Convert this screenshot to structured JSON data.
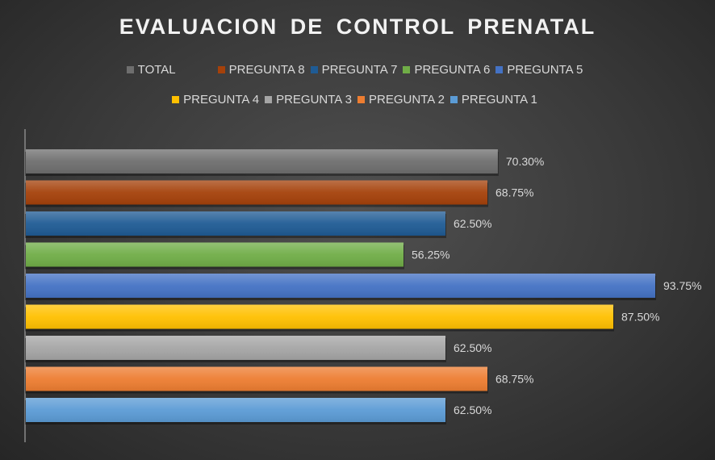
{
  "chart_data": {
    "type": "bar",
    "orientation": "horizontal",
    "title": "EVALUACION  DE CONTROL PRENATAL",
    "categories": [
      "TOTAL",
      "PREGUNTA 8",
      "PREGUNTA 7",
      "PREGUNTA 6",
      "PREGUNTA 5",
      "PREGUNTA 4",
      "PREGUNTA 3",
      "PREGUNTA 2",
      "PREGUNTA 1"
    ],
    "values": [
      70.3,
      68.75,
      62.5,
      56.25,
      93.75,
      87.5,
      62.5,
      68.75,
      62.5
    ],
    "labels": [
      "70.30%",
      "68.75%",
      "62.50%",
      "56.25%",
      "93.75%",
      "87.50%",
      "62.50%",
      "68.75%",
      "62.50%"
    ],
    "colors": [
      "#6e6e6e",
      "#a5410a",
      "#1f5b94",
      "#70ad47",
      "#4472c4",
      "#ffc000",
      "#a5a5a5",
      "#ed7d31",
      "#5b9bd5"
    ],
    "xlim": [
      0,
      100
    ],
    "unit": "%",
    "grid": false,
    "legend_position": "top"
  }
}
